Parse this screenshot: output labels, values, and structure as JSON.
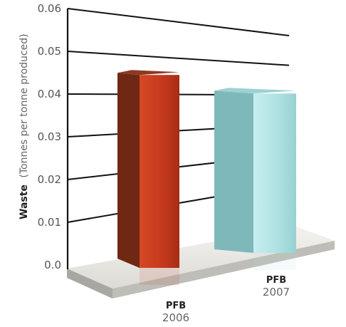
{
  "chart_data": {
    "type": "bar",
    "title": "",
    "xlabel": "",
    "ylabel": "Waste (Tonnes per tonne produced)",
    "ylabel_parts": {
      "bold": "Waste",
      "rest": "(Tonnes per tonne produced)"
    },
    "categories": [
      {
        "name": "PFB",
        "year": "2006"
      },
      {
        "name": "PFB",
        "year": "2007"
      }
    ],
    "values": [
      0.048,
      0.044
    ],
    "ylim": [
      0,
      0.06
    ],
    "ticks": [
      "0.0",
      "0.01",
      "0.02",
      "0.03",
      "0.04",
      "0.05",
      "0.06"
    ],
    "grid": true,
    "legend": "none",
    "colors": {
      "bar_2006": "#c4391d",
      "bar_2006_side": "#6e2814",
      "bar_2007": "#aee0e1",
      "bar_2007_side": "#7fb8ba",
      "gridline": "#111111",
      "floor_top": "#e9e7e2",
      "floor_front": "#bfbdb8"
    }
  }
}
